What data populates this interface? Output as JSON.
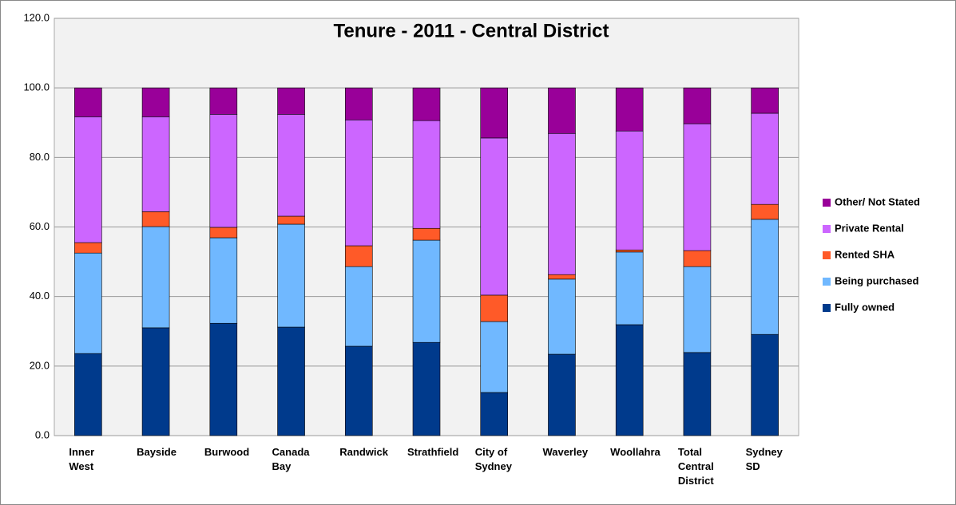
{
  "chart_data": {
    "type": "stacked_bar",
    "title": "Tenure - 2011 - Central District",
    "categories": [
      "Inner West",
      "Bayside",
      "Burwood",
      "Canada Bay",
      "Randwick",
      "Strathfield",
      "City of Sydney",
      "Waverley",
      "Woollahra",
      "Total Central District",
      "Sydney SD"
    ],
    "series": [
      {
        "name": "Fully owned",
        "color": "#003a8c",
        "values": [
          23.6,
          31.0,
          32.3,
          31.2,
          25.7,
          26.8,
          12.4,
          23.4,
          31.9,
          23.9,
          29.1
        ]
      },
      {
        "name": "Being purchased",
        "color": "#70b8ff",
        "values": [
          28.9,
          29.1,
          24.6,
          29.6,
          22.9,
          29.4,
          20.4,
          21.6,
          20.9,
          24.7,
          33.1
        ]
      },
      {
        "name": "Rented SHA",
        "color": "#ff5a28",
        "values": [
          3.0,
          4.3,
          3.0,
          2.3,
          6.0,
          3.4,
          7.6,
          1.3,
          0.6,
          4.6,
          4.3
        ]
      },
      {
        "name": "Private Rental",
        "color": "#cc66ff",
        "values": [
          36.2,
          27.3,
          32.5,
          29.3,
          36.2,
          31.0,
          45.2,
          40.6,
          34.2,
          36.5,
          26.2
        ]
      },
      {
        "name": "Other/ Not Stated",
        "color": "#990099",
        "values": [
          8.3,
          8.3,
          7.6,
          7.6,
          9.2,
          9.4,
          14.4,
          13.1,
          12.4,
          10.3,
          7.3
        ]
      }
    ],
    "ylim": [
      0,
      120
    ],
    "yticks": [
      {
        "value": 0,
        "label": "0.0"
      },
      {
        "value": 20,
        "label": "20.0"
      },
      {
        "value": 40,
        "label": "40.0"
      },
      {
        "value": 60,
        "label": "60.0"
      },
      {
        "value": 80,
        "label": "80.0"
      },
      {
        "value": 100,
        "label": "100.0"
      },
      {
        "value": 120,
        "label": "120.0"
      }
    ],
    "grid": true,
    "legend": "right"
  }
}
